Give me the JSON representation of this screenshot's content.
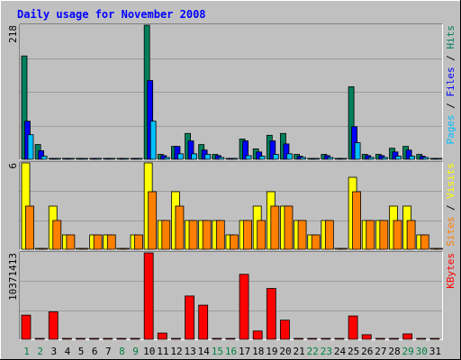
{
  "colors": {
    "background": "#c0c0c0",
    "plot_bg": "#c0c0c0",
    "grid": "#9c9c9c",
    "title": "#0000ff",
    "axis_text": "#000000",
    "weekend": "#008040",
    "hits": "#00805c",
    "files": "#0000ff",
    "pages": "#00c0ff",
    "visits": "#ffff00",
    "sites": "#ff8000",
    "kbytes": "#ff0000"
  },
  "chart_data": {
    "type": "bar",
    "title": "Daily usage for November 2008",
    "categories": [
      "1",
      "2",
      "3",
      "4",
      "5",
      "6",
      "7",
      "8",
      "9",
      "10",
      "11",
      "12",
      "13",
      "14",
      "15",
      "16",
      "17",
      "18",
      "19",
      "20",
      "21",
      "22",
      "23",
      "24",
      "25",
      "26",
      "27",
      "28",
      "29",
      "30",
      "31"
    ],
    "weekend_days": [
      "1",
      "2",
      "8",
      "9",
      "15",
      "16",
      "22",
      "23",
      "29",
      "30"
    ],
    "panels": [
      {
        "id": "hits-files-pages",
        "max_label": "218",
        "ylim": [
          0,
          218
        ],
        "legend": [
          {
            "text": "Pages",
            "color": "#00c0ff"
          },
          {
            "text": " / ",
            "color": "#000000"
          },
          {
            "text": "Files",
            "color": "#0000ff"
          },
          {
            "text": " / ",
            "color": "#000000"
          },
          {
            "text": "Hits",
            "color": "#00805c"
          }
        ],
        "series": [
          {
            "name": "Hits",
            "color": "#00805c",
            "values": [
              168,
              24,
              0,
              0,
              0,
              0,
              0,
              0,
              0,
              218,
              8,
              21,
              42,
              24,
              8,
              0,
              33,
              17,
              39,
              42,
              8,
              0,
              8,
              0,
              118,
              8,
              8,
              18,
              21,
              8,
              0
            ]
          },
          {
            "name": "Files",
            "color": "#0000ff",
            "values": [
              62,
              14,
              0,
              0,
              0,
              0,
              0,
              0,
              0,
              128,
              6,
              21,
              30,
              15,
              6,
              0,
              30,
              12,
              30,
              25,
              5,
              0,
              6,
              0,
              53,
              6,
              6,
              12,
              15,
              5,
              0
            ]
          },
          {
            "name": "Pages",
            "color": "#00c0ff",
            "values": [
              40,
              5,
              0,
              0,
              0,
              0,
              0,
              0,
              0,
              62,
              3,
              9,
              9,
              8,
              3,
              0,
              6,
              5,
              8,
              9,
              3,
              0,
              3,
              0,
              27,
              3,
              3,
              5,
              5,
              3,
              0
            ]
          }
        ]
      },
      {
        "id": "visits-sites",
        "max_label": "6",
        "ylim": [
          0,
          6
        ],
        "legend": [
          {
            "text": "Sites",
            "color": "#ff8000"
          },
          {
            "text": " / ",
            "color": "#000000"
          },
          {
            "text": "Visits",
            "color": "#ffff00"
          }
        ],
        "series": [
          {
            "name": "Visits",
            "color": "#ffff00",
            "values": [
              6,
              0,
              3,
              1,
              0,
              1,
              1,
              0,
              1,
              6,
              2,
              4,
              2,
              2,
              2,
              1,
              2,
              3,
              4,
              3,
              2,
              1,
              2,
              0,
              5,
              2,
              2,
              3,
              3,
              1,
              0
            ]
          },
          {
            "name": "Sites",
            "color": "#ff8000",
            "values": [
              3,
              0,
              2,
              1,
              0,
              1,
              1,
              0,
              1,
              4,
              2,
              3,
              2,
              2,
              2,
              1,
              2,
              2,
              3,
              3,
              2,
              1,
              2,
              0,
              4,
              2,
              2,
              2,
              2,
              1,
              0
            ]
          }
        ]
      },
      {
        "id": "kbytes",
        "max_label": "10371413",
        "ylim": [
          0,
          10371413
        ],
        "legend": [
          {
            "text": "KBytes",
            "color": "#ff0000"
          }
        ],
        "series": [
          {
            "name": "KBytes",
            "color": "#ff0000",
            "values": [
              2900000,
              0,
              3300000,
              0,
              0,
              0,
              0,
              0,
              0,
              10371413,
              750000,
              0,
              5200000,
              4100000,
              0,
              0,
              7800000,
              1000000,
              6100000,
              2300000,
              0,
              0,
              0,
              0,
              2800000,
              550000,
              0,
              0,
              650000,
              0,
              0
            ]
          }
        ]
      }
    ]
  }
}
